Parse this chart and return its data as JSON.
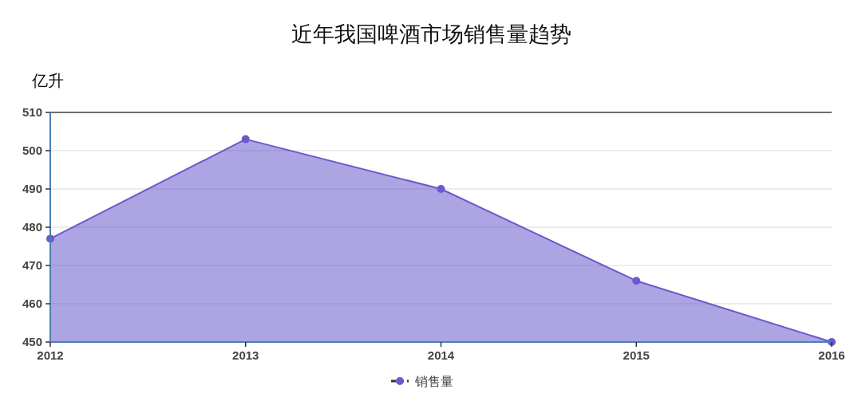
{
  "chart_data": {
    "type": "area",
    "title": "近年我国啤酒市场销售量趋势",
    "ylabel": "亿升",
    "categories": [
      "2012",
      "2013",
      "2014",
      "2015",
      "2016"
    ],
    "series": [
      {
        "name": "销售量",
        "color": "#6a5acd",
        "values": [
          477,
          503,
          490,
          466,
          450
        ]
      }
    ],
    "ylim": [
      450,
      510
    ],
    "yticks": [
      450,
      460,
      470,
      480,
      490,
      500,
      510
    ],
    "grid": "y",
    "legend": "bottom",
    "marker": "circle"
  }
}
